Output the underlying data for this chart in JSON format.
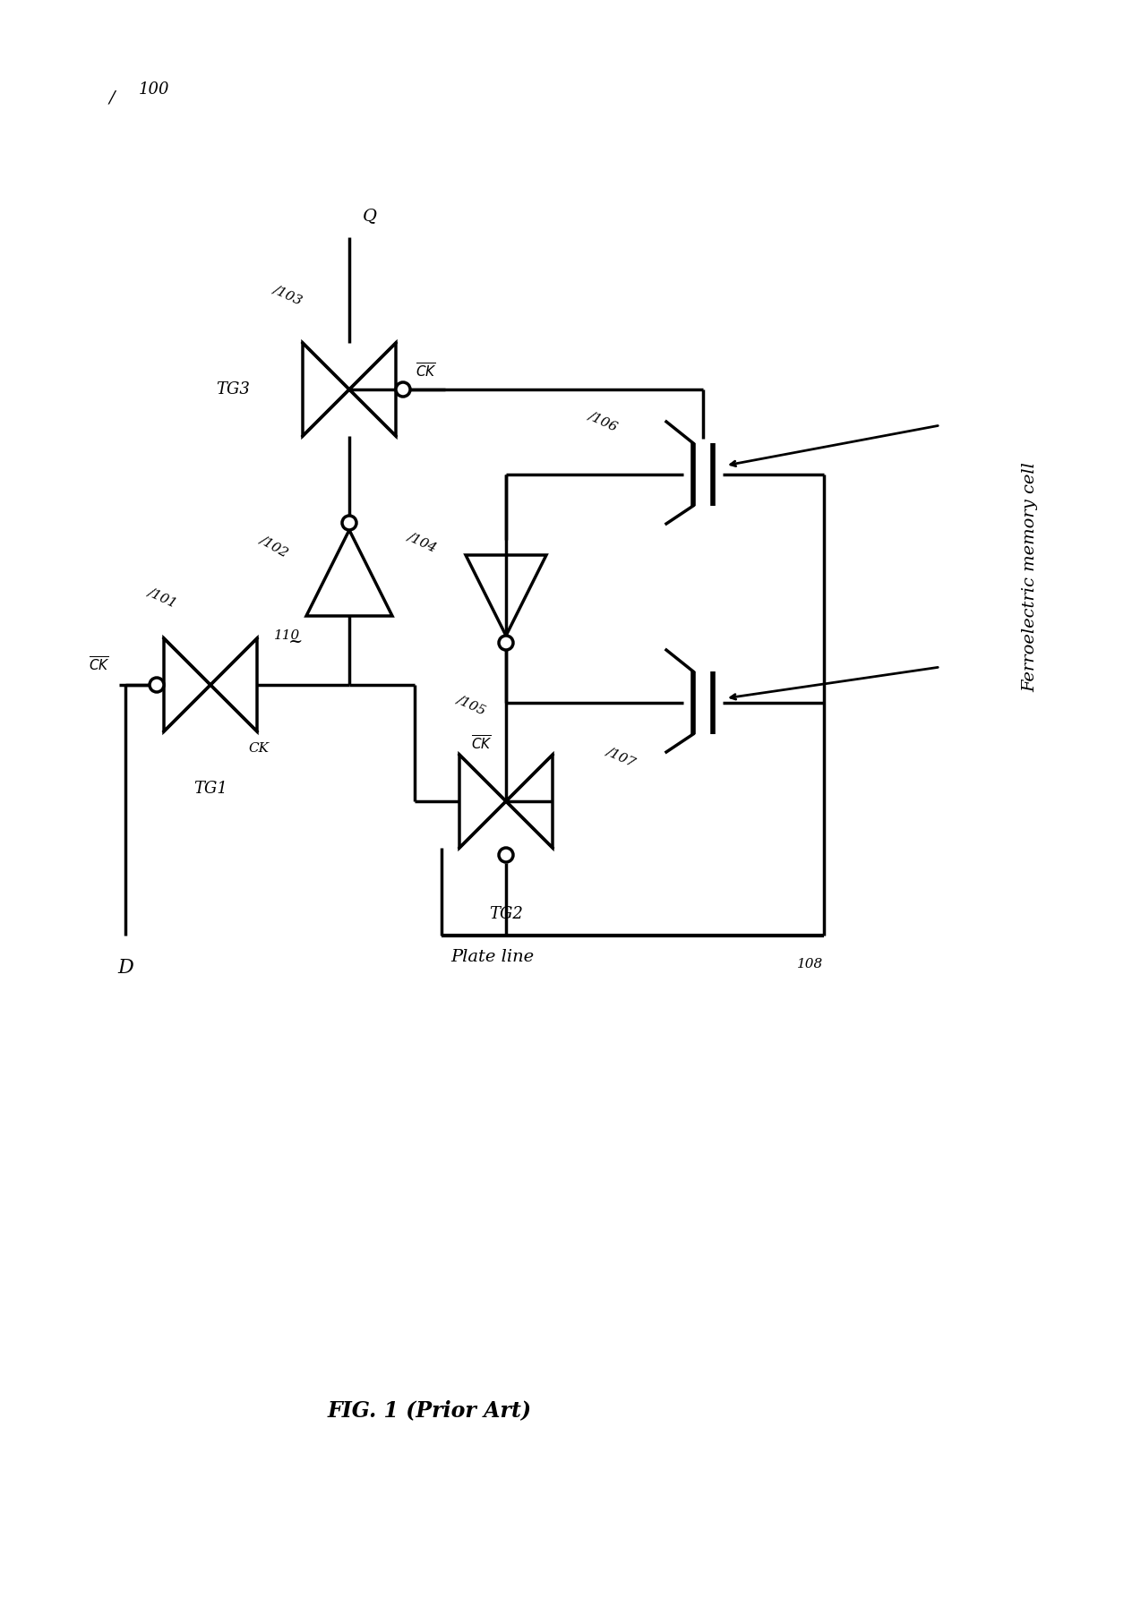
{
  "bg_color": "#ffffff",
  "lw": 2.5,
  "fig_width": 12.64,
  "fig_height": 17.95,
  "title": "FIG. 1 (Prior Art)",
  "circuit_ref": "100",
  "labels": {
    "D": "D",
    "Q": "Q",
    "TG1": "TG1",
    "TG2": "TG2",
    "TG3": "TG3",
    "n101": "101",
    "n102": "102",
    "n103": "103",
    "n104": "104",
    "n105": "105",
    "n106": "106",
    "n107": "107",
    "n108": "108",
    "n110": "110",
    "CK": "CK",
    "CKbar": "CK",
    "plate_line": "Plate line",
    "ferro": "Ferroelectric memory cell"
  }
}
